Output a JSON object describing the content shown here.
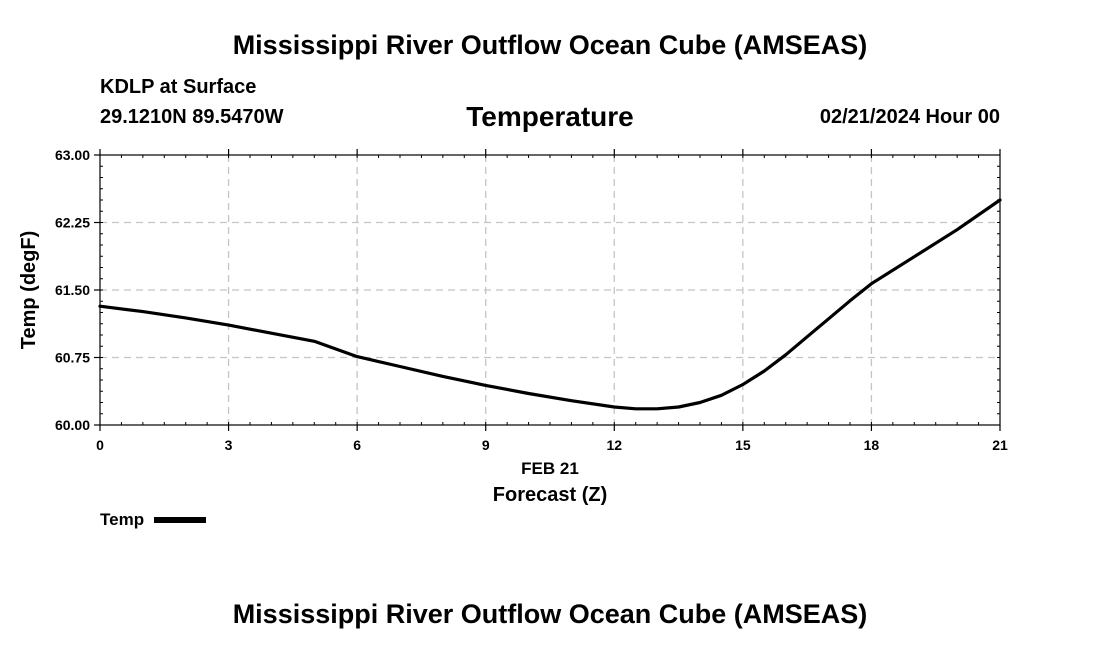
{
  "header": {
    "title": "Mississippi River Outflow Ocean Cube (AMSEAS)",
    "station": "KDLP at Surface",
    "coords": "29.1210N  89.5470W",
    "parameter": "Temperature",
    "datetime": "02/21/2024 Hour 00"
  },
  "footer": {
    "title": "Mississippi River Outflow Ocean Cube (AMSEAS)"
  },
  "chart_data": {
    "type": "line",
    "title": "Temperature",
    "xlabel": "Forecast (Z)",
    "xlabel_date": "FEB 21",
    "ylabel": "Temp (degF)",
    "xlim": [
      0,
      21
    ],
    "ylim": [
      60.0,
      63.0
    ],
    "x_ticks": [
      0,
      3,
      6,
      9,
      12,
      15,
      18,
      21
    ],
    "x_tick_labels": [
      "0",
      "3",
      "6",
      "9",
      "12",
      "15",
      "18",
      "21"
    ],
    "y_ticks": [
      60.0,
      60.75,
      61.5,
      62.25,
      63.0
    ],
    "y_tick_labels": [
      "60.00",
      "60.75",
      "61.50",
      "62.25",
      "63.00"
    ],
    "grid": true,
    "legend_position": "bottom-left",
    "series": [
      {
        "name": "Temp",
        "color": "#000000",
        "x": [
          0,
          1,
          2,
          3,
          4,
          5,
          6,
          7,
          8,
          9,
          10,
          11,
          12,
          12.5,
          13,
          13.5,
          14,
          14.5,
          15,
          15.5,
          16,
          16.5,
          17,
          17.5,
          18,
          19,
          20,
          21
        ],
        "values": [
          61.32,
          61.26,
          61.19,
          61.11,
          61.02,
          60.93,
          60.76,
          60.65,
          60.54,
          60.44,
          60.35,
          60.27,
          60.2,
          60.18,
          60.18,
          60.2,
          60.25,
          60.33,
          60.45,
          60.6,
          60.78,
          60.98,
          61.18,
          61.38,
          61.57,
          61.87,
          62.17,
          62.5
        ]
      }
    ]
  }
}
